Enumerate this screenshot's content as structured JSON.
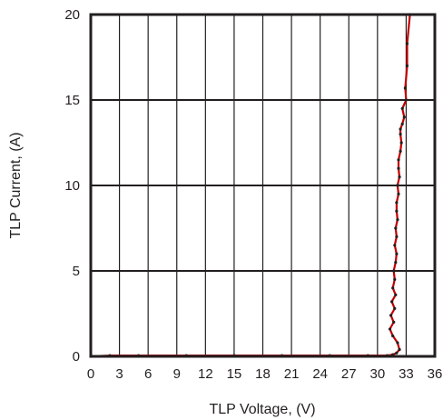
{
  "chart_data": {
    "type": "line",
    "xlabel": "TLP Voltage, (V)",
    "ylabel": "TLP Current, (A)",
    "xlim": [
      0,
      36
    ],
    "ylim": [
      0,
      20
    ],
    "xticks": [
      "0",
      "3",
      "6",
      "9",
      "12",
      "15",
      "18",
      "21",
      "24",
      "27",
      "30",
      "33",
      "36"
    ],
    "yticks": [
      "0",
      "5",
      "10",
      "15",
      "20"
    ],
    "grid": true,
    "colors": {
      "series": "#c00000",
      "markers": "#231f20",
      "frame": "#231f20",
      "grid": "#231f20"
    },
    "series": [
      {
        "x": [
          0.0,
          2.0,
          5.0,
          10.0,
          15.0,
          20.0,
          25.0,
          29.0,
          31.0,
          31.6,
          32.0,
          32.3,
          32.1,
          31.6,
          31.3,
          31.7,
          31.4,
          31.8,
          31.5,
          31.9,
          31.6,
          31.8,
          31.7,
          31.9,
          32.0,
          31.8,
          32.0,
          31.9,
          32.1,
          32.0,
          32.0,
          32.2,
          32.1,
          32.3,
          32.2,
          32.2,
          32.4,
          32.5,
          32.4,
          32.4,
          32.6,
          32.8,
          32.6,
          33.0,
          32.9,
          33.1,
          33.1,
          33.4
        ],
        "y": [
          0.0,
          0.05,
          0.05,
          0.05,
          0.05,
          0.05,
          0.05,
          0.05,
          0.05,
          0.1,
          0.2,
          0.4,
          0.8,
          1.2,
          1.6,
          2.0,
          2.4,
          2.8,
          3.2,
          3.6,
          4.0,
          4.5,
          5.0,
          5.5,
          6.0,
          6.5,
          7.0,
          7.5,
          8.0,
          8.5,
          9.0,
          9.5,
          10.0,
          10.5,
          11.0,
          11.5,
          12.0,
          12.5,
          13.0,
          13.3,
          13.6,
          14.0,
          14.5,
          15.0,
          15.7,
          17.0,
          18.3,
          20.0
        ]
      }
    ]
  }
}
